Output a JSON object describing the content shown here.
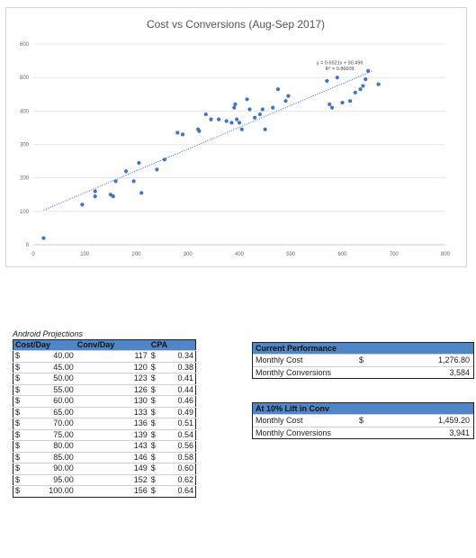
{
  "chart_data": {
    "type": "scatter",
    "title": "Cost vs Conversions (Aug-Sep 2017)",
    "xlim": [
      0,
      800
    ],
    "ylim": [
      0,
      600
    ],
    "x_ticks": [
      0,
      100,
      200,
      300,
      400,
      500,
      600,
      700,
      800
    ],
    "y_ticks": [
      0,
      100,
      200,
      300,
      400,
      500,
      600
    ],
    "grid": true,
    "trendline": {
      "equation": "y = 0.6521x + 90.499",
      "r_squared": "R² = 0.86609",
      "slope": 0.6521,
      "intercept": 90.499,
      "x_range": [
        20,
        660
      ]
    },
    "points": [
      {
        "x": 20,
        "y": 20
      },
      {
        "x": 95,
        "y": 120
      },
      {
        "x": 120,
        "y": 145
      },
      {
        "x": 120,
        "y": 160
      },
      {
        "x": 150,
        "y": 150
      },
      {
        "x": 155,
        "y": 145
      },
      {
        "x": 160,
        "y": 190
      },
      {
        "x": 180,
        "y": 220
      },
      {
        "x": 195,
        "y": 190
      },
      {
        "x": 205,
        "y": 245
      },
      {
        "x": 210,
        "y": 155
      },
      {
        "x": 240,
        "y": 225
      },
      {
        "x": 255,
        "y": 255
      },
      {
        "x": 280,
        "y": 335
      },
      {
        "x": 290,
        "y": 330
      },
      {
        "x": 320,
        "y": 345
      },
      {
        "x": 322,
        "y": 340
      },
      {
        "x": 335,
        "y": 390
      },
      {
        "x": 345,
        "y": 375
      },
      {
        "x": 360,
        "y": 375
      },
      {
        "x": 375,
        "y": 370
      },
      {
        "x": 385,
        "y": 365
      },
      {
        "x": 390,
        "y": 410
      },
      {
        "x": 392,
        "y": 420
      },
      {
        "x": 395,
        "y": 375
      },
      {
        "x": 400,
        "y": 365
      },
      {
        "x": 405,
        "y": 345
      },
      {
        "x": 415,
        "y": 435
      },
      {
        "x": 420,
        "y": 405
      },
      {
        "x": 430,
        "y": 380
      },
      {
        "x": 440,
        "y": 390
      },
      {
        "x": 445,
        "y": 405
      },
      {
        "x": 450,
        "y": 345
      },
      {
        "x": 465,
        "y": 410
      },
      {
        "x": 475,
        "y": 465
      },
      {
        "x": 490,
        "y": 430
      },
      {
        "x": 495,
        "y": 445
      },
      {
        "x": 570,
        "y": 490
      },
      {
        "x": 575,
        "y": 420
      },
      {
        "x": 580,
        "y": 410
      },
      {
        "x": 590,
        "y": 500
      },
      {
        "x": 600,
        "y": 425
      },
      {
        "x": 615,
        "y": 430
      },
      {
        "x": 625,
        "y": 455
      },
      {
        "x": 635,
        "y": 465
      },
      {
        "x": 640,
        "y": 475
      },
      {
        "x": 645,
        "y": 495
      },
      {
        "x": 650,
        "y": 520
      },
      {
        "x": 670,
        "y": 480
      }
    ]
  },
  "projections": {
    "title": "Android Projections",
    "headers": [
      "Cost/Day",
      "Conv/Day",
      "CPA"
    ],
    "currency": "$",
    "rows": [
      {
        "cost": "40.00",
        "conv": "117",
        "cpa": "0.34"
      },
      {
        "cost": "45.00",
        "conv": "120",
        "cpa": "0.38"
      },
      {
        "cost": "50.00",
        "conv": "123",
        "cpa": "0.41"
      },
      {
        "cost": "55.00",
        "conv": "126",
        "cpa": "0.44"
      },
      {
        "cost": "60.00",
        "conv": "130",
        "cpa": "0.46"
      },
      {
        "cost": "65.00",
        "conv": "133",
        "cpa": "0.49"
      },
      {
        "cost": "70.00",
        "conv": "136",
        "cpa": "0.51"
      },
      {
        "cost": "75.00",
        "conv": "139",
        "cpa": "0.54"
      },
      {
        "cost": "80.00",
        "conv": "143",
        "cpa": "0.56"
      },
      {
        "cost": "85.00",
        "conv": "146",
        "cpa": "0.58"
      },
      {
        "cost": "90.00",
        "conv": "149",
        "cpa": "0.60"
      },
      {
        "cost": "95.00",
        "conv": "152",
        "cpa": "0.62"
      },
      {
        "cost": "100.00",
        "conv": "156",
        "cpa": "0.64"
      }
    ]
  },
  "current": {
    "title": "Current Performance",
    "cost_label": "Monthly Cost",
    "currency": "$",
    "cost_value": "1,276.80",
    "conv_label": "Monthly Conversions",
    "conv_value": "3,584"
  },
  "lift": {
    "title": "At 10% Lift in Conv",
    "cost_label": "Monthly Cost",
    "currency": "$",
    "cost_value": "1,459.20",
    "conv_label": "Monthly Conversions",
    "conv_value": "3,941"
  },
  "colors": {
    "accent": "#4e86c8",
    "points": "#3f74c6",
    "trendline": "#4b7fcf"
  }
}
